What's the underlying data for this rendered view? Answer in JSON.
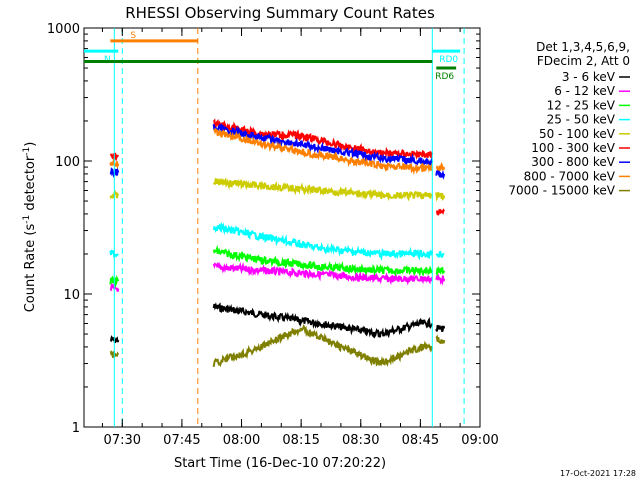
{
  "chart_data": {
    "type": "line",
    "title": "RHESSI Observing Summary Count Rates",
    "xlabel": "Start Time (16-Dec-10 07:20:22)",
    "ylabel": "Count Rate (s",
    "ylabel_sup": "-1",
    "ylabel_mid": " detector",
    "ylabel_end": ")",
    "y_scale": "log",
    "ylim": [
      1,
      1000
    ],
    "xlim": [
      "07:20:22",
      "09:00"
    ],
    "x_ticks": [
      "07:30",
      "07:45",
      "08:00",
      "08:15",
      "08:30",
      "08:45",
      "09:00"
    ],
    "y_ticks": [
      "1",
      "10",
      "100",
      "1000"
    ],
    "legend_position": "right",
    "legend_header": [
      "Det 1,3,4,5,6,9,",
      "FDecim 2, Att 0"
    ],
    "series": [
      {
        "name": "3 - 6 keV",
        "color": "#000000",
        "segments": [
          {
            "x": [
              "07:27",
              "07:29"
            ],
            "y": [
              4.5,
              4.5
            ]
          },
          {
            "x": [
              "07:53",
              "08:05",
              "08:20",
              "08:35",
              "08:45",
              "08:48"
            ],
            "y": [
              8,
              7,
              6,
              5,
              6,
              6
            ]
          },
          {
            "x": [
              "08:49",
              "08:51"
            ],
            "y": [
              5.5,
              5.5
            ]
          }
        ]
      },
      {
        "name": "6 - 12 keV",
        "color": "#ff00ff",
        "segments": [
          {
            "x": [
              "07:27",
              "07:29"
            ],
            "y": [
              11,
              11
            ]
          },
          {
            "x": [
              "07:53",
              "08:05",
              "08:20",
              "08:35",
              "08:45",
              "08:48"
            ],
            "y": [
              16,
              15,
              14,
              13,
              13,
              13
            ]
          },
          {
            "x": [
              "08:49",
              "08:51"
            ],
            "y": [
              13,
              13
            ]
          }
        ]
      },
      {
        "name": "12 - 25 keV",
        "color": "#00ff00",
        "segments": [
          {
            "x": [
              "07:27",
              "07:29"
            ],
            "y": [
              12.5,
              12.5
            ]
          },
          {
            "x": [
              "07:53",
              "08:05",
              "08:20",
              "08:35",
              "08:45",
              "08:48"
            ],
            "y": [
              21,
              18,
              16,
              15,
              15,
              15
            ]
          },
          {
            "x": [
              "08:49",
              "08:51"
            ],
            "y": [
              15,
              15
            ]
          }
        ]
      },
      {
        "name": "25 - 50 keV",
        "color": "#00ffff",
        "segments": [
          {
            "x": [
              "07:27",
              "07:29"
            ],
            "y": [
              20,
              20
            ]
          },
          {
            "x": [
              "07:53",
              "08:05",
              "08:20",
              "08:35",
              "08:45",
              "08:48"
            ],
            "y": [
              32,
              27,
              22,
              20,
              20,
              20
            ]
          },
          {
            "x": [
              "08:49",
              "08:51"
            ],
            "y": [
              20,
              20
            ]
          }
        ]
      },
      {
        "name": "50 - 100 keV",
        "color": "#cccc00",
        "segments": [
          {
            "x": [
              "07:27",
              "07:29"
            ],
            "y": [
              55,
              55
            ]
          },
          {
            "x": [
              "07:53",
              "08:05",
              "08:20",
              "08:35",
              "08:45",
              "08:48"
            ],
            "y": [
              70,
              65,
              60,
              55,
              55,
              55
            ]
          },
          {
            "x": [
              "08:49",
              "08:51"
            ],
            "y": [
              55,
              55
            ]
          }
        ]
      },
      {
        "name": "100 - 300 keV",
        "color": "#ff0000",
        "segments": [
          {
            "x": [
              "07:27",
              "07:29"
            ],
            "y": [
              108,
              108
            ]
          },
          {
            "x": [
              "07:53",
              "08:05",
              "08:15",
              "08:25",
              "08:35",
              "08:45",
              "08:48"
            ],
            "y": [
              190,
              160,
              155,
              130,
              115,
              112,
              112
            ]
          },
          {
            "x": [
              "08:49",
              "08:51"
            ],
            "y": [
              42,
              42
            ]
          }
        ]
      },
      {
        "name": "300 - 800 keV",
        "color": "#0000ff",
        "segments": [
          {
            "x": [
              "07:27",
              "07:29"
            ],
            "y": [
              82,
              82
            ]
          },
          {
            "x": [
              "07:53",
              "08:05",
              "08:20",
              "08:35",
              "08:45",
              "08:48"
            ],
            "y": [
              180,
              150,
              125,
              105,
              100,
              98
            ]
          },
          {
            "x": [
              "08:49",
              "08:51"
            ],
            "y": [
              80,
              80
            ]
          }
        ]
      },
      {
        "name": "800 - 7000 keV",
        "color": "#ff8000",
        "segments": [
          {
            "x": [
              "07:27",
              "07:29"
            ],
            "y": [
              95,
              95
            ]
          },
          {
            "x": [
              "07:53",
              "08:05",
              "08:20",
              "08:35",
              "08:45",
              "08:48"
            ],
            "y": [
              165,
              135,
              110,
              92,
              88,
              88
            ]
          },
          {
            "x": [
              "08:49",
              "08:51"
            ],
            "y": [
              90,
              90
            ]
          }
        ]
      },
      {
        "name": "7000 - 15000 keV",
        "color": "#808000",
        "segments": [
          {
            "x": [
              "07:27",
              "07:29"
            ],
            "y": [
              3.5,
              3.5
            ]
          },
          {
            "x": [
              "07:53",
              "08:05",
              "08:15",
              "08:25",
              "08:35",
              "08:45",
              "08:48"
            ],
            "y": [
              3,
              4,
              5.5,
              4,
              3,
              4,
              4
            ]
          },
          {
            "x": [
              "08:49",
              "08:51"
            ],
            "y": [
              4.5,
              4.5
            ]
          }
        ]
      }
    ],
    "annotations": [
      {
        "label": "S",
        "color": "#ff8000",
        "x_start": "07:27",
        "x_end": "07:49",
        "y": 800
      },
      {
        "label": "N",
        "color": "#00ffff",
        "x_start": "07:20:22",
        "x_end": "07:29",
        "y": 670
      },
      {
        "label": "RD0",
        "color": "#00ffff",
        "x_start": "08:48",
        "x_end": "08:55",
        "y": 670
      },
      {
        "label": "",
        "color": "#008000",
        "x_start": "07:20:22",
        "x_end": "08:48",
        "y": 560
      },
      {
        "label": "RD6",
        "color": "#008000",
        "x_start": "08:49",
        "x_end": "08:54",
        "y": 500
      }
    ],
    "vertical_markers": [
      {
        "x": "07:28",
        "color": "#00ffff",
        "style": "solid"
      },
      {
        "x": "07:30",
        "color": "#00ffff",
        "style": "dashed"
      },
      {
        "x": "07:49",
        "color": "#ff8000",
        "style": "dashed"
      },
      {
        "x": "08:48",
        "color": "#00ffff",
        "style": "solid"
      },
      {
        "x": "08:56",
        "color": "#00ffff",
        "style": "dashed"
      }
    ],
    "timestamp": "17-Oct-2021 17:28"
  }
}
